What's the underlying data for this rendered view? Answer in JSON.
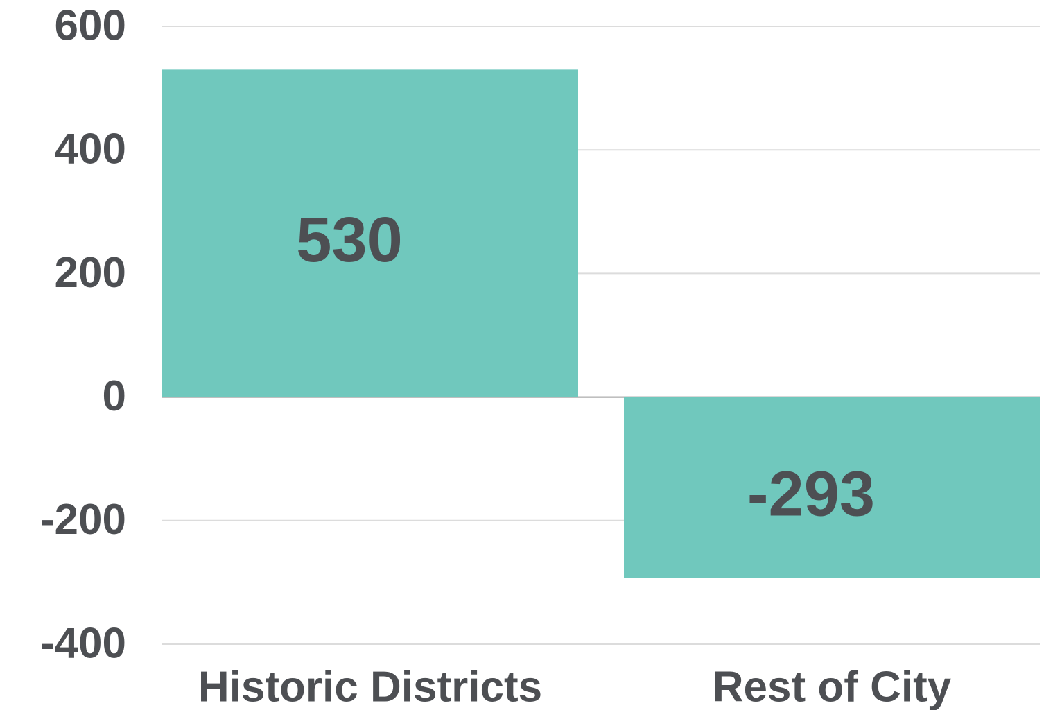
{
  "chart_data": {
    "type": "bar",
    "categories": [
      "Historic Districts",
      "Rest of City"
    ],
    "values": [
      530,
      -293
    ],
    "color": "#70c8bd",
    "ylim": [
      -400,
      600
    ],
    "yticks": [
      -400,
      -200,
      0,
      200,
      400,
      600
    ],
    "grid": true
  }
}
